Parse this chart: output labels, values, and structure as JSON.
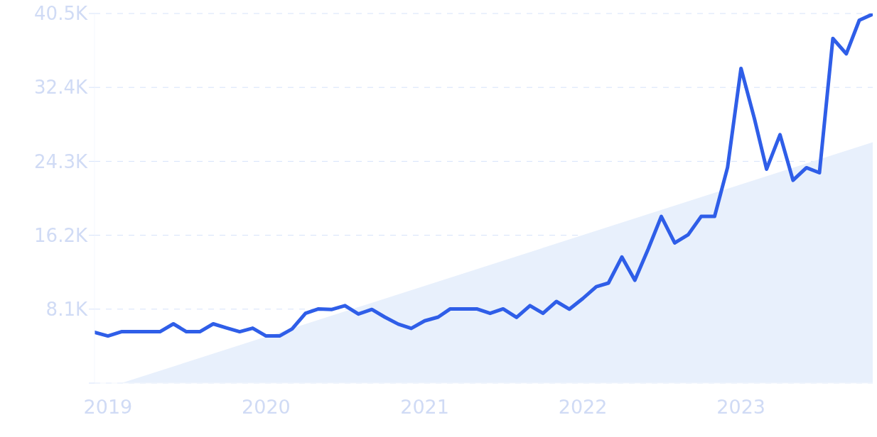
{
  "chart_data": {
    "type": "line",
    "x": [
      "2018-12",
      "2019-01",
      "2019-02",
      "2019-03",
      "2019-04",
      "2019-05",
      "2019-06",
      "2019-07",
      "2019-08",
      "2019-09",
      "2019-10",
      "2019-11",
      "2019-12",
      "2020-01",
      "2020-02",
      "2020-03",
      "2020-04",
      "2020-05",
      "2020-06",
      "2020-07",
      "2020-08",
      "2020-09",
      "2020-10",
      "2020-11",
      "2020-12",
      "2021-01",
      "2021-02",
      "2021-03",
      "2021-04",
      "2021-05",
      "2021-06",
      "2021-07",
      "2021-08",
      "2021-09",
      "2021-10",
      "2021-11",
      "2021-12",
      "2022-01",
      "2022-02",
      "2022-03",
      "2022-04",
      "2022-05",
      "2022-06",
      "2022-07",
      "2022-08",
      "2022-09",
      "2022-10",
      "2022-11",
      "2022-12",
      "2023-01",
      "2023-02",
      "2023-03",
      "2023-04",
      "2023-05",
      "2023-06",
      "2023-07",
      "2023-08",
      "2023-09",
      "2023-10",
      "2023-11"
    ],
    "series": [
      {
        "type": "area",
        "color": "#e8f0fc",
        "x": [
          "2019-02",
          "2023-11"
        ],
        "values": [
          0,
          26400
        ]
      },
      {
        "color": "#2f5ee8",
        "values": [
          5570,
          5160,
          5630,
          5630,
          5630,
          5630,
          6490,
          5630,
          5630,
          6490,
          6050,
          5630,
          6020,
          5160,
          5160,
          5940,
          7650,
          8130,
          8070,
          8490,
          7570,
          8070,
          7230,
          6460,
          5990,
          6820,
          7230,
          8130,
          8130,
          8130,
          7640,
          8130,
          7200,
          8490,
          7640,
          8940,
          8100,
          9270,
          10570,
          10960,
          13810,
          11270,
          14710,
          18260,
          15360,
          16260,
          18260,
          18260,
          23640,
          34480,
          28960,
          23440,
          27220,
          22220,
          23600,
          23050,
          37760,
          36080,
          39760,
          40430
        ]
      }
    ],
    "xlim": [
      "2018-12",
      "2023-11"
    ],
    "xticks": [
      "2019",
      "2020",
      "2021",
      "2022",
      "2023"
    ],
    "ylim": [
      0,
      40500
    ],
    "yticks": [
      {
        "value": 0,
        "label": null
      },
      {
        "value": 8100,
        "label": "8.1K"
      },
      {
        "value": 16200,
        "label": "16.2K"
      },
      {
        "value": 24300,
        "label": "24.3K"
      },
      {
        "value": 32400,
        "label": "32.4K"
      },
      {
        "value": 40500,
        "label": "40.5K"
      }
    ],
    "grid": "y",
    "legend": false,
    "marker": "none",
    "line_style": "solid"
  }
}
